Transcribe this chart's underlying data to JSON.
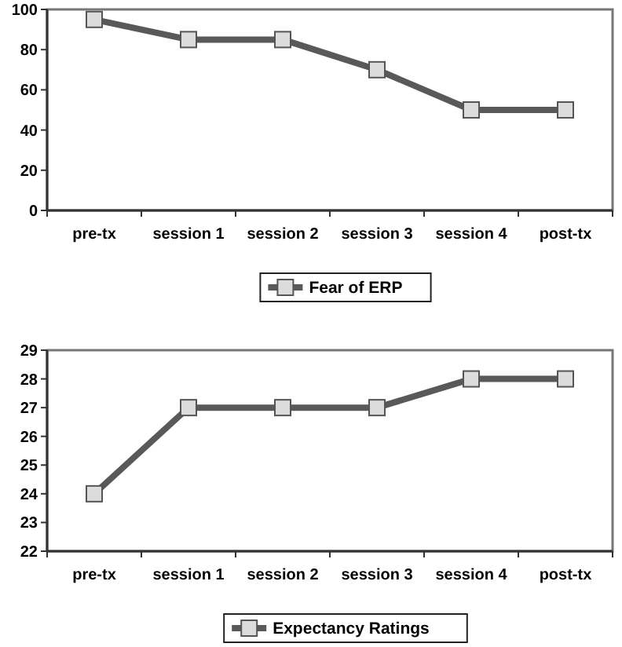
{
  "chart_data": [
    {
      "type": "line",
      "categories": [
        "pre-tx",
        "session 1",
        "session 2",
        "session 3",
        "session 4",
        "post-tx"
      ],
      "series": [
        {
          "name": "Fear of ERP",
          "color": "#595959",
          "values": [
            95,
            85,
            85,
            70,
            50,
            50
          ]
        }
      ],
      "ylim": [
        0,
        100
      ],
      "yticks": [
        0,
        20,
        40,
        60,
        80,
        100
      ],
      "legend": "bottom",
      "marker": "square",
      "grid": false
    },
    {
      "type": "line",
      "categories": [
        "pre-tx",
        "session 1",
        "session 2",
        "session 3",
        "session 4",
        "post-tx"
      ],
      "series": [
        {
          "name": "Expectancy Ratings",
          "color": "#595959",
          "values": [
            24,
            27,
            27,
            27,
            28,
            28
          ]
        }
      ],
      "ylim": [
        22,
        29
      ],
      "yticks": [
        22,
        23,
        24,
        25,
        26,
        27,
        28,
        29
      ],
      "legend": "bottom",
      "marker": "square",
      "grid": false
    }
  ]
}
